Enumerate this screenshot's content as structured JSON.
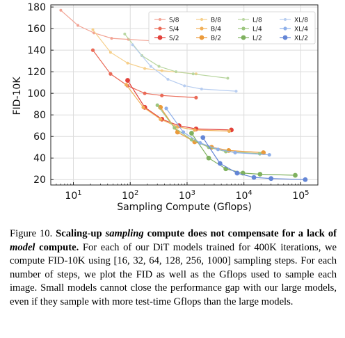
{
  "chart_data": {
    "type": "line",
    "xlabel": "Sampling Compute (Gflops)",
    "ylabel": "FID-10K",
    "xscale": "log",
    "xlim": [
      4,
      200000
    ],
    "ylim": [
      15,
      182
    ],
    "xticks": [
      {
        "value": 10,
        "base": "10",
        "exp": "1"
      },
      {
        "value": 100,
        "base": "10",
        "exp": "2"
      },
      {
        "value": 1000,
        "base": "10",
        "exp": "3"
      },
      {
        "value": 10000,
        "base": "10",
        "exp": "4"
      },
      {
        "value": 100000,
        "base": "10",
        "exp": "5"
      }
    ],
    "yticks": [
      20,
      40,
      60,
      80,
      100,
      120,
      140,
      160,
      180
    ],
    "grid": true,
    "legend_placement": "top-right",
    "series": [
      {
        "name": "S/8",
        "color": "#f2a394",
        "size": 2.0,
        "x": [
          6,
          12,
          23,
          47,
          93,
          370
        ],
        "y": [
          177,
          163,
          156,
          151,
          150,
          148
        ]
      },
      {
        "name": "S/4",
        "color": "#ea6a57",
        "size": 2.6,
        "x": [
          22,
          45,
          90,
          180,
          360,
          1440
        ],
        "y": [
          140,
          118,
          107,
          100,
          98,
          96
        ]
      },
      {
        "name": "S/2",
        "color": "#e2413a",
        "size": 3.4,
        "x": [
          90,
          180,
          360,
          720,
          1440,
          6000
        ],
        "y": [
          112,
          87,
          76,
          70,
          67,
          66
        ]
      },
      {
        "name": "B/8",
        "color": "#f6cf8a",
        "size": 2.0,
        "x": [
          22,
          45,
          90,
          180,
          360,
          1440
        ],
        "y": [
          159,
          138,
          128,
          123,
          121,
          118
        ]
      },
      {
        "name": "B/4",
        "color": "#f1b05a",
        "size": 2.6,
        "x": [
          85,
          170,
          340,
          680,
          1360,
          5500
        ],
        "y": [
          108,
          87,
          76,
          69,
          66,
          65
        ]
      },
      {
        "name": "B/2",
        "color": "#eb9a3a",
        "size": 3.4,
        "x": [
          340,
          680,
          1360,
          2700,
          5400,
          22000
        ],
        "y": [
          87,
          64,
          55,
          50,
          47,
          45
        ]
      },
      {
        "name": "L/8",
        "color": "#b9d6a0",
        "size": 2.0,
        "x": [
          80,
          160,
          320,
          640,
          1280,
          5200
        ],
        "y": [
          155,
          135,
          125,
          120,
          118,
          114
        ]
      },
      {
        "name": "L/4",
        "color": "#9cc57e",
        "size": 2.6,
        "x": [
          300,
          600,
          1200,
          2400,
          4800,
          19000
        ],
        "y": [
          89,
          68,
          57,
          50,
          46,
          44
        ]
      },
      {
        "name": "L/2",
        "color": "#7fb15f",
        "size": 3.4,
        "x": [
          1200,
          2400,
          4800,
          9600,
          19200,
          80000
        ],
        "y": [
          63,
          40,
          30,
          26,
          25,
          24
        ]
      },
      {
        "name": "XL/8",
        "color": "#b7cdf0",
        "size": 2.0,
        "x": [
          110,
          230,
          460,
          900,
          1800,
          7300
        ],
        "y": [
          145,
          125,
          113,
          107,
          104,
          102
        ]
      },
      {
        "name": "XL/4",
        "color": "#8fb0ea",
        "size": 2.6,
        "x": [
          430,
          860,
          1700,
          3500,
          7000,
          28000
        ],
        "y": [
          86,
          64,
          54,
          48,
          45,
          43
        ]
      },
      {
        "name": "XL/2",
        "color": "#6486d6",
        "size": 3.4,
        "x": [
          1900,
          3800,
          7600,
          15000,
          30000,
          120000
        ],
        "y": [
          59,
          35,
          26,
          22,
          21,
          20
        ]
      }
    ]
  },
  "caption": {
    "label": "Figure 10.",
    "bold_1": "Scaling-up ",
    "bold_2_italic": "sampling",
    "bold_3": " compute does not compensate for a lack of ",
    "bold_4_italic": "model",
    "bold_5": " compute.",
    "body": " For each of our DiT models trained for 400K iterations, we compute FID-10K using [16, 32, 64, 128, 256, 1000] sampling steps. For each number of steps, we plot the FID as well as the Gflops used to sample each image. Small models cannot close the performance gap with our large models, even if they sample with more test-time Gflops than the large models."
  }
}
